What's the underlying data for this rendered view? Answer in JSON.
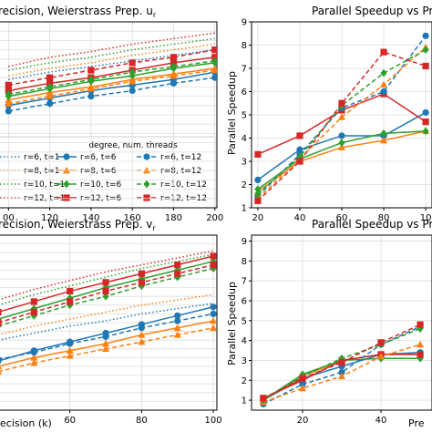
{
  "chart_data": [
    {
      "type": "line",
      "title": "recision, Weierstrass Prep. u",
      "title_sub": "r",
      "xlabel": "",
      "ylabel": "",
      "x": [
        100,
        120,
        140,
        160,
        180,
        200
      ],
      "xticks": [
        "00",
        "120",
        "140",
        "160",
        "180",
        "200"
      ],
      "xlim": [
        95,
        201
      ],
      "ylim": [
        0,
        10
      ],
      "grid": true,
      "series": [
        {
          "name": "r=6, t=1",
          "color": "#1f77b4",
          "style": "dotted",
          "marker": "none",
          "values": [
            6.9,
            7.3,
            7.6,
            7.9,
            8.2,
            8.5
          ]
        },
        {
          "name": "r=8, t=1",
          "color": "#ff7f0e",
          "style": "dotted",
          "marker": "none",
          "values": [
            7.1,
            7.5,
            7.8,
            8.2,
            8.5,
            8.8
          ]
        },
        {
          "name": "r=10, t=1",
          "color": "#2ca02c",
          "style": "dotted",
          "marker": "none",
          "values": [
            7.4,
            7.8,
            8.1,
            8.5,
            8.8,
            9.1
          ]
        },
        {
          "name": "r=12, t=1",
          "color": "#d62728",
          "style": "dotted",
          "marker": "none",
          "values": [
            7.6,
            8.1,
            8.4,
            8.8,
            9.1,
            9.4
          ]
        },
        {
          "name": "r=6, t=6",
          "color": "#1f77b4",
          "style": "solid",
          "marker": "circle",
          "values": [
            5.5,
            5.9,
            6.3,
            6.6,
            6.9,
            7.3
          ]
        },
        {
          "name": "r=8, t=6",
          "color": "#ff7f0e",
          "style": "solid",
          "marker": "triangle",
          "values": [
            5.8,
            6.2,
            6.5,
            6.9,
            7.2,
            7.5
          ]
        },
        {
          "name": "r=10, t=6",
          "color": "#2ca02c",
          "style": "solid",
          "marker": "diamond",
          "values": [
            6.0,
            6.4,
            6.8,
            7.1,
            7.5,
            7.8
          ]
        },
        {
          "name": "r=12, t=6",
          "color": "#d62728",
          "style": "solid",
          "marker": "square",
          "values": [
            6.3,
            6.7,
            7.0,
            7.4,
            7.8,
            8.1
          ]
        },
        {
          "name": "r=6, t=12",
          "color": "#1f77b4",
          "style": "dashed",
          "marker": "circle",
          "values": [
            5.2,
            5.6,
            6.0,
            6.3,
            6.7,
            7.0
          ]
        },
        {
          "name": "r=8, t=12",
          "color": "#ff7f0e",
          "style": "dashed",
          "marker": "triangle",
          "values": [
            5.6,
            6.0,
            6.4,
            6.8,
            7.1,
            7.4
          ]
        },
        {
          "name": "r=10, t=12",
          "color": "#2ca02c",
          "style": "dashed",
          "marker": "diamond",
          "values": [
            6.1,
            6.5,
            6.9,
            7.3,
            7.6,
            7.9
          ]
        },
        {
          "name": "r=12, t=12",
          "color": "#d62728",
          "style": "dashed",
          "marker": "square",
          "values": [
            6.6,
            7.0,
            7.4,
            7.8,
            8.1,
            8.5
          ]
        }
      ],
      "legend": {
        "title": "degree, num. threads",
        "placement": "lower-center",
        "columns": 3
      }
    },
    {
      "type": "line",
      "title": "Parallel Speedup vs Pr",
      "xlabel": "",
      "ylabel": "Parallel Speedup",
      "x": [
        20,
        40,
        60,
        80,
        100
      ],
      "xticks": [
        "20",
        "40",
        "60",
        "80",
        "10"
      ],
      "yticks": [
        "1",
        "2",
        "3",
        "4",
        "5",
        "6",
        "7",
        "8",
        "9"
      ],
      "xlim": [
        17,
        103
      ],
      "ylim": [
        1,
        9
      ],
      "grid": true,
      "series": [
        {
          "name": "r=6, t=6",
          "color": "#1f77b4",
          "style": "solid",
          "marker": "circle",
          "values": [
            2.2,
            3.5,
            4.1,
            4.1,
            5.1
          ]
        },
        {
          "name": "r=8, t=6",
          "color": "#ff7f0e",
          "style": "solid",
          "marker": "triangle",
          "values": [
            1.7,
            3.0,
            3.6,
            3.9,
            4.3
          ]
        },
        {
          "name": "r=10, t=6",
          "color": "#2ca02c",
          "style": "solid",
          "marker": "diamond",
          "values": [
            1.8,
            3.1,
            3.8,
            4.2,
            4.3
          ]
        },
        {
          "name": "r=12, t=6",
          "color": "#d62728",
          "style": "solid",
          "marker": "square",
          "values": [
            3.3,
            4.1,
            5.2,
            5.9,
            4.7
          ]
        },
        {
          "name": "r=6, t=12",
          "color": "#1f77b4",
          "style": "dashed",
          "marker": "circle",
          "values": [
            1.5,
            3.3,
            5.3,
            6.0,
            8.4
          ]
        },
        {
          "name": "r=8, t=12",
          "color": "#ff7f0e",
          "style": "dashed",
          "marker": "triangle",
          "values": [
            1.4,
            3.1,
            4.9,
            6.3,
            7.9
          ]
        },
        {
          "name": "r=10, t=12",
          "color": "#2ca02c",
          "style": "dashed",
          "marker": "diamond",
          "values": [
            1.6,
            3.2,
            5.4,
            6.8,
            7.8
          ]
        },
        {
          "name": "r=12, t=12",
          "color": "#d62728",
          "style": "dashed",
          "marker": "square",
          "values": [
            1.3,
            3.0,
            5.5,
            7.7,
            7.1
          ]
        }
      ]
    },
    {
      "type": "line",
      "title": "recision, Weierstrass Prep. v",
      "title_sub": "r",
      "xlabel": "ecision (k)",
      "ylabel": "",
      "x": [
        40,
        50,
        60,
        70,
        80,
        90,
        100
      ],
      "xticks": [
        "60",
        "80",
        "100"
      ],
      "xtick_values": [
        60,
        80,
        100
      ],
      "xlim": [
        40,
        101
      ],
      "ylim": [
        0,
        10
      ],
      "grid": true,
      "series": [
        {
          "name": "r=6, t=1",
          "color": "#1f77b4",
          "style": "dotted",
          "marker": "none",
          "values": [
            4.0,
            4.4,
            4.8,
            5.1,
            5.5,
            5.8,
            6.1
          ]
        },
        {
          "name": "r=8, t=1",
          "color": "#ff7f0e",
          "style": "dotted",
          "marker": "none",
          "values": [
            4.3,
            4.8,
            5.2,
            5.6,
            6.0,
            6.3,
            6.6
          ]
        },
        {
          "name": "r=10, t=1",
          "color": "#2ca02c",
          "style": "dotted",
          "marker": "none",
          "values": [
            6.0,
            6.6,
            7.1,
            7.6,
            8.1,
            8.5,
            8.9
          ]
        },
        {
          "name": "r=12, t=1",
          "color": "#d62728",
          "style": "dotted",
          "marker": "none",
          "values": [
            6.3,
            6.9,
            7.4,
            7.9,
            8.3,
            8.7,
            9.1
          ]
        },
        {
          "name": "r=6, t=6",
          "color": "#1f77b4",
          "style": "solid",
          "marker": "circle",
          "values": [
            2.8,
            3.4,
            3.9,
            4.4,
            4.9,
            5.4,
            5.9
          ]
        },
        {
          "name": "r=8, t=6",
          "color": "#ff7f0e",
          "style": "solid",
          "marker": "triangle",
          "values": [
            2.5,
            3.0,
            3.4,
            3.8,
            4.3,
            4.7,
            5.1
          ]
        },
        {
          "name": "r=10, t=6",
          "color": "#2ca02c",
          "style": "solid",
          "marker": "diamond",
          "values": [
            5.2,
            5.8,
            6.4,
            7.0,
            7.5,
            8.0,
            8.5
          ]
        },
        {
          "name": "r=12, t=6",
          "color": "#d62728",
          "style": "solid",
          "marker": "square",
          "values": [
            5.6,
            6.2,
            6.8,
            7.3,
            7.8,
            8.3,
            8.8
          ]
        },
        {
          "name": "r=6, t=12",
          "color": "#1f77b4",
          "style": "dashed",
          "marker": "circle",
          "values": [
            2.9,
            3.3,
            3.8,
            4.2,
            4.7,
            5.1,
            5.5
          ]
        },
        {
          "name": "r=8, t=12",
          "color": "#ff7f0e",
          "style": "dashed",
          "marker": "triangle",
          "values": [
            2.2,
            2.7,
            3.1,
            3.5,
            3.9,
            4.3,
            4.7
          ]
        },
        {
          "name": "r=10, t=12",
          "color": "#2ca02c",
          "style": "dashed",
          "marker": "diamond",
          "values": [
            4.8,
            5.4,
            6.0,
            6.5,
            7.1,
            7.6,
            8.1
          ]
        },
        {
          "name": "r=12, t=12",
          "color": "#d62728",
          "style": "dashed",
          "marker": "square",
          "values": [
            5.0,
            5.6,
            6.2,
            6.8,
            7.3,
            7.8,
            8.3
          ]
        }
      ]
    },
    {
      "type": "line",
      "title": "Parallel Speedup vs Pr",
      "xlabel": "Pre",
      "ylabel": "Parallel Speedup",
      "x": [
        10,
        20,
        30,
        40,
        50
      ],
      "xticks": [
        "20",
        "40"
      ],
      "xtick_values": [
        20,
        40
      ],
      "yticks": [
        "1",
        "2",
        "3",
        "4",
        "5",
        "6",
        "7",
        "8",
        "9"
      ],
      "xlim": [
        7,
        53
      ],
      "ylim": [
        0.5,
        9.3
      ],
      "grid": true,
      "series": [
        {
          "name": "r=6, t=6",
          "color": "#1f77b4",
          "style": "solid",
          "marker": "circle",
          "values": [
            1.0,
            2.1,
            2.7,
            3.3,
            3.4
          ]
        },
        {
          "name": "r=8, t=6",
          "color": "#ff7f0e",
          "style": "solid",
          "marker": "triangle",
          "values": [
            1.0,
            2.2,
            3.0,
            3.3,
            3.3
          ]
        },
        {
          "name": "r=10, t=6",
          "color": "#2ca02c",
          "style": "solid",
          "marker": "diamond",
          "values": [
            1.0,
            2.3,
            3.0,
            3.1,
            3.1
          ]
        },
        {
          "name": "r=12, t=6",
          "color": "#d62728",
          "style": "solid",
          "marker": "square",
          "values": [
            1.1,
            2.0,
            3.0,
            3.3,
            3.3
          ]
        },
        {
          "name": "r=6, t=12",
          "color": "#1f77b4",
          "style": "dashed",
          "marker": "circle",
          "values": [
            0.8,
            1.8,
            2.4,
            3.8,
            4.7
          ]
        },
        {
          "name": "r=8, t=12",
          "color": "#ff7f0e",
          "style": "dashed",
          "marker": "triangle",
          "values": [
            0.9,
            1.6,
            2.2,
            3.2,
            3.8
          ]
        },
        {
          "name": "r=10, t=12",
          "color": "#2ca02c",
          "style": "dashed",
          "marker": "diamond",
          "values": [
            1.0,
            2.2,
            3.1,
            3.8,
            4.6
          ]
        },
        {
          "name": "r=12, t=12",
          "color": "#d62728",
          "style": "dashed",
          "marker": "square",
          "values": [
            1.1,
            2.1,
            2.9,
            3.9,
            4.8
          ]
        }
      ]
    }
  ]
}
